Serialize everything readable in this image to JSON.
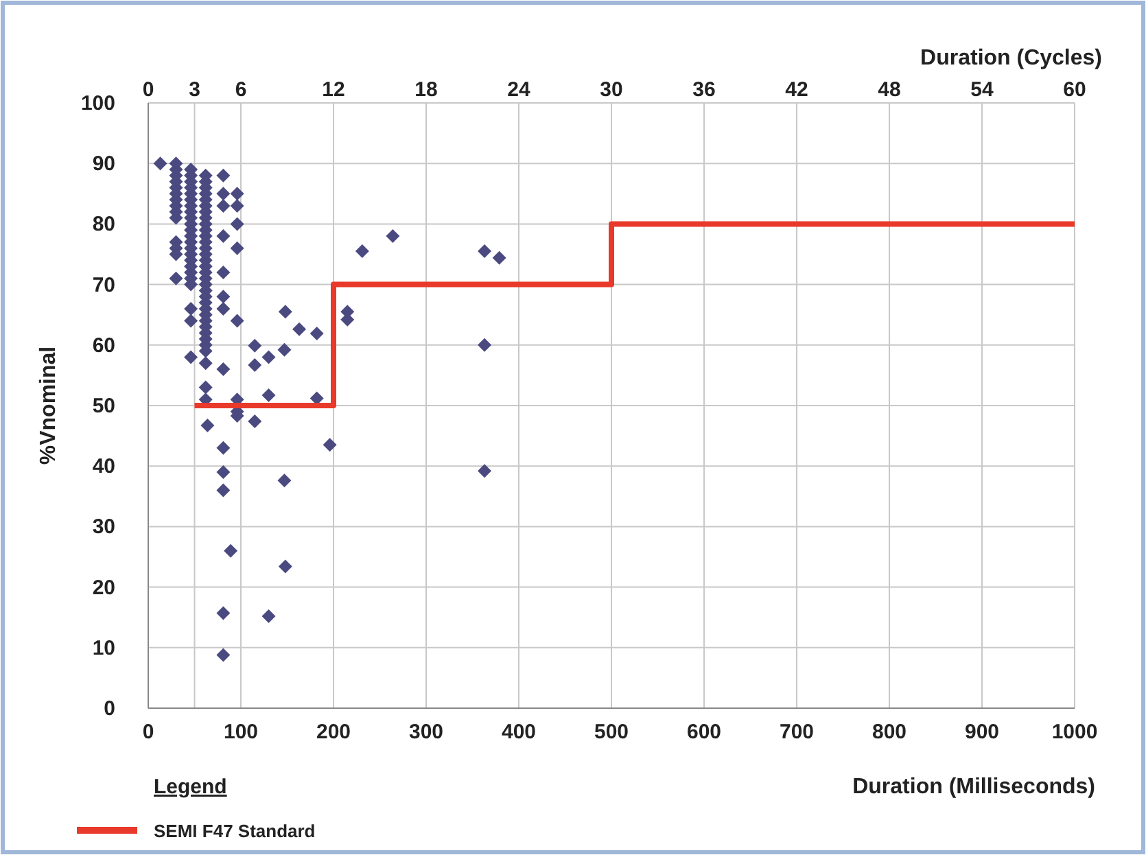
{
  "chart_data": {
    "type": "scatter",
    "xlabel": "Duration (Milliseconds)",
    "x2label": "Duration (Cycles)",
    "ylabel": "%Vnominal",
    "legend_title": "Legend",
    "xlim": [
      0,
      1000
    ],
    "xticks": [
      0,
      100,
      200,
      300,
      400,
      500,
      600,
      700,
      800,
      900,
      1000
    ],
    "x2lim": [
      0,
      60
    ],
    "x2ticks": [
      0,
      3,
      6,
      12,
      18,
      24,
      30,
      36,
      42,
      48,
      54,
      60
    ],
    "ylim": [
      0,
      100
    ],
    "yticks": [
      0,
      10,
      20,
      30,
      40,
      50,
      60,
      70,
      80,
      90,
      100
    ],
    "grid": true,
    "legend": "bottom left",
    "series": [
      {
        "marker": "diamond",
        "color": "#4b4a80",
        "x": [
          13,
          30,
          30,
          30,
          30,
          30,
          30,
          30,
          30,
          30,
          30,
          30,
          30,
          30,
          30,
          46,
          46,
          46,
          46,
          46,
          46,
          46,
          46,
          46,
          46,
          46,
          46,
          46,
          46,
          46,
          46,
          46,
          46,
          46,
          46,
          46,
          46,
          46,
          62,
          62,
          62,
          62,
          62,
          62,
          62,
          62,
          62,
          62,
          62,
          62,
          62,
          62,
          62,
          62,
          62,
          62,
          62,
          62,
          62,
          62,
          62,
          62,
          62,
          62,
          62,
          62,
          62,
          62,
          62,
          62,
          62,
          64,
          81,
          81,
          81,
          81,
          81,
          81,
          81,
          81,
          81,
          81,
          81,
          81,
          81,
          89,
          96,
          96,
          96,
          96,
          96,
          96,
          96,
          96,
          115,
          115,
          115,
          130,
          130,
          130,
          147,
          147,
          148,
          148,
          163,
          182,
          182,
          196,
          215,
          215,
          231,
          264,
          363,
          363,
          363,
          379
        ],
        "values": [
          90,
          90,
          89,
          88,
          87,
          86,
          85,
          84,
          83,
          82,
          81,
          77,
          76,
          75,
          71,
          89,
          88,
          87,
          86,
          85,
          84,
          83,
          82,
          81,
          80,
          79,
          78,
          77,
          76,
          75,
          74,
          73,
          72,
          71,
          70,
          66,
          64,
          58,
          88,
          87,
          86,
          85,
          84,
          83,
          82,
          81,
          80,
          79,
          78,
          77,
          76,
          75,
          74,
          73,
          72,
          71,
          70,
          69,
          68,
          67,
          66,
          65,
          64,
          63,
          62,
          61,
          60,
          59,
          57,
          53,
          51,
          46.7,
          88,
          85,
          83,
          78,
          72,
          68,
          66,
          56,
          43,
          39,
          36,
          15.7,
          8.8,
          26,
          85,
          83,
          80,
          76,
          64,
          51,
          49,
          48.3,
          59.9,
          56.7,
          47.4,
          58,
          51.7,
          15.2,
          59.2,
          37.6,
          65.5,
          23.4,
          62.6,
          61.9,
          51.2,
          43.5,
          64.2,
          65.5,
          75.5,
          78,
          75.5,
          60,
          39.2,
          74.4
        ]
      },
      {
        "type": "step",
        "name": "SEMI F47 Standard",
        "color": "#e8392a",
        "x": [
          50,
          200,
          500,
          1000
        ],
        "values": [
          50,
          70,
          80,
          80
        ]
      }
    ]
  }
}
